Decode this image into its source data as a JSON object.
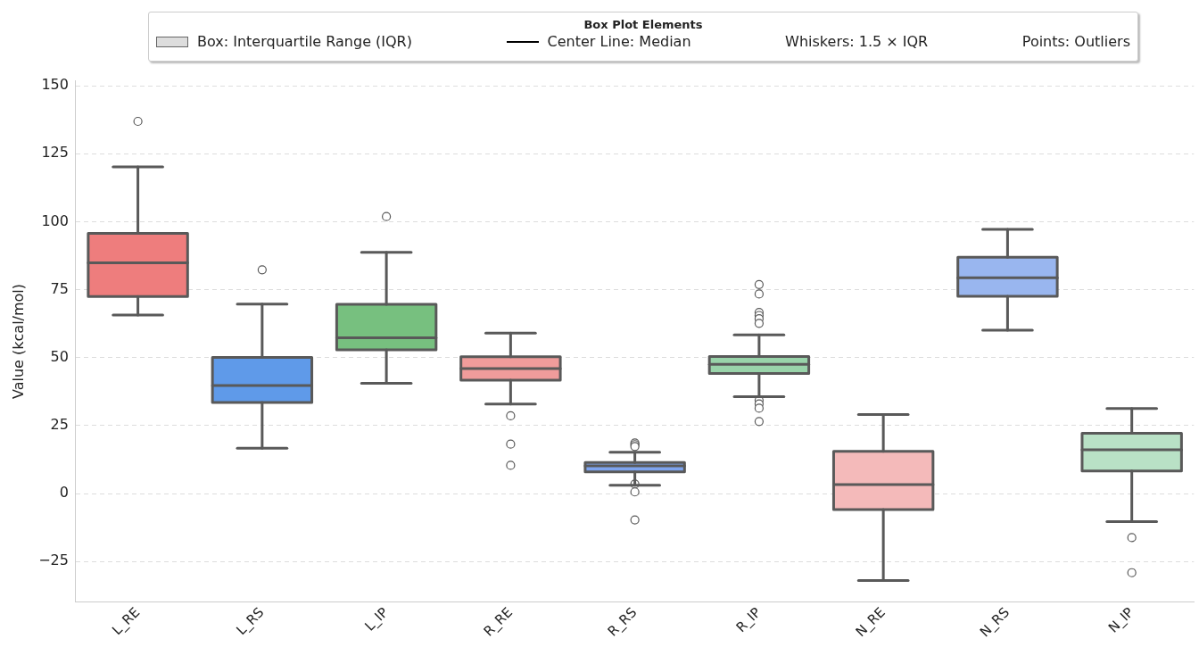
{
  "chart_data": {
    "type": "box",
    "ylabel": "Value (kcal/mol)",
    "legend_title": "Box Plot Elements",
    "grid": "y",
    "categories": [
      "L_RE",
      "L_RS",
      "L_IP",
      "R_RE",
      "R_RS",
      "R_IP",
      "N_RE",
      "N_RS",
      "N_IP"
    ],
    "colors": [
      "#ee7d7d",
      "#5f9ae9",
      "#77c07f",
      "#f09c9b",
      "#7ea4ef",
      "#99d4aa",
      "#f4baba",
      "#99b6ef",
      "#b9e1c6"
    ],
    "boxes": [
      {
        "low": 65.7,
        "q1": 72.5,
        "median": 84.9,
        "q3": 95.7,
        "high": 120.2,
        "outliers": [
          136.9
        ]
      },
      {
        "low": 16.7,
        "q1": 33.5,
        "median": 39.7,
        "q3": 50.1,
        "high": 69.7,
        "outliers": [
          82.3
        ]
      },
      {
        "low": 40.6,
        "q1": 52.9,
        "median": 57.3,
        "q3": 69.6,
        "high": 88.7,
        "outliers": [
          101.9
        ]
      },
      {
        "low": 32.9,
        "q1": 41.7,
        "median": 46,
        "q3": 50.3,
        "high": 59,
        "outliers": [
          28.6,
          18.2,
          10.4
        ]
      },
      {
        "low": 3.1,
        "q1": 8,
        "median": 10.2,
        "q3": 11.4,
        "high": 15.2,
        "outliers": [
          18.6,
          18,
          17.3,
          3.5,
          0.6,
          -9.7
        ]
      },
      {
        "low": 35.6,
        "q1": 44.2,
        "median": 47.5,
        "q3": 50.4,
        "high": 58.4,
        "outliers": [
          76.9,
          73.4,
          66.6,
          65.5,
          64.3,
          62.6,
          34.3,
          33,
          31.4,
          26.5
        ]
      },
      {
        "low": -32,
        "q1": -5.9,
        "median": 3.3,
        "q3": 15.5,
        "high": 29.1
      },
      {
        "low": 60.1,
        "q1": 72.6,
        "median": 79.4,
        "q3": 86.9,
        "high": 97.2
      },
      {
        "low": -10.3,
        "q1": 8.3,
        "median": 16.1,
        "q3": 22.2,
        "high": 31.3,
        "outliers": [
          -16.2,
          -29.1
        ]
      }
    ],
    "ylim": [
      -40,
      152
    ],
    "yticks": [
      {
        "value": -25,
        "label": "−25"
      },
      0,
      25,
      50,
      75,
      100,
      125,
      150
    ],
    "annotations": [
      "Box: Interquartile Range (IQR)",
      "Center Line: Median",
      "Whiskers: 1.5 × IQR",
      "Points: Outliers"
    ]
  }
}
